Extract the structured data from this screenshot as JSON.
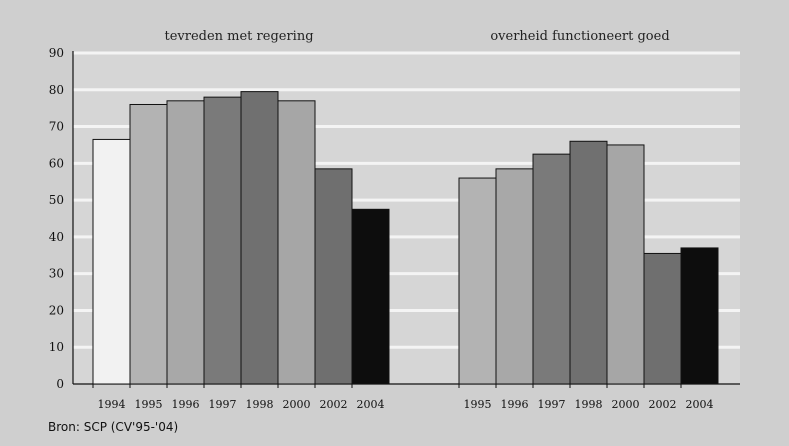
{
  "chart_data": {
    "type": "bar",
    "ylim": [
      0,
      90
    ],
    "yticks": [
      0,
      10,
      20,
      30,
      40,
      50,
      60,
      70,
      80,
      90
    ],
    "grid": true,
    "panels": [
      {
        "title": "tevreden met regering",
        "categories": [
          "1994",
          "1995",
          "1996",
          "1997",
          "1998",
          "2000",
          "2002",
          "2004"
        ],
        "values": [
          66.5,
          76,
          77,
          78,
          79.5,
          77,
          58.5,
          47.5
        ],
        "colors": [
          "#f2f2f2",
          "#b3b3b3",
          "#a8a8a8",
          "#7a7a7a",
          "#707070",
          "#a6a6a6",
          "#6f6f6f",
          "#0d0d0d"
        ]
      },
      {
        "title": "overheid functioneert goed",
        "categories": [
          "1995",
          "1996",
          "1997",
          "1998",
          "2000",
          "2002",
          "2004"
        ],
        "values": [
          56,
          58.5,
          62.5,
          66,
          65,
          35.5,
          37
        ],
        "colors": [
          "#b3b3b3",
          "#a8a8a8",
          "#7a7a7a",
          "#707070",
          "#a6a6a6",
          "#6f6f6f",
          "#0d0d0d"
        ]
      }
    ]
  },
  "source": "Bron: SCP (CV'95-'04)"
}
